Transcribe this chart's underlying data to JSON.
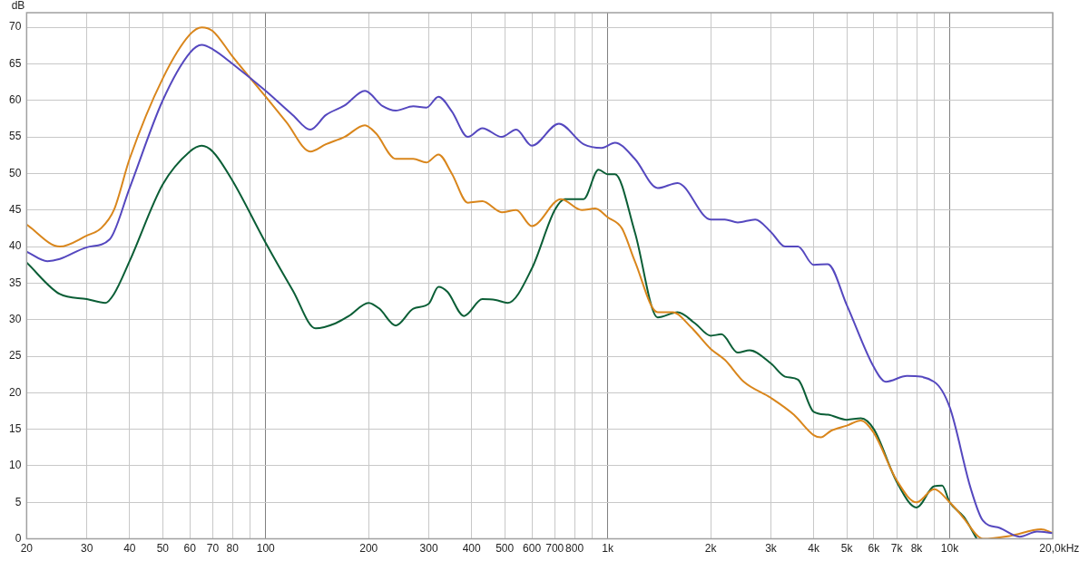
{
  "chart_data": {
    "type": "line",
    "ylabel": "dB",
    "xlabel": "Hz",
    "log": "x",
    "grid": true,
    "legend": false,
    "xlim": [
      20,
      20000
    ],
    "ylim": [
      0,
      72
    ],
    "xticks": [
      20,
      30,
      40,
      50,
      60,
      70,
      80,
      {
        "value": 90,
        "label": null
      },
      100,
      200,
      300,
      400,
      500,
      600,
      700,
      800,
      {
        "value": 900,
        "label": null
      },
      {
        "value": 1000,
        "label": "1k"
      },
      {
        "value": 2000,
        "label": "2k"
      },
      {
        "value": 3000,
        "label": "3k"
      },
      {
        "value": 4000,
        "label": "4k"
      },
      {
        "value": 5000,
        "label": "5k"
      },
      {
        "value": 6000,
        "label": "6k"
      },
      {
        "value": 7000,
        "label": "7k"
      },
      {
        "value": 8000,
        "label": "8k"
      },
      {
        "value": 9000,
        "label": null
      },
      {
        "value": 10000,
        "label": "10k"
      },
      {
        "value": 20000,
        "label": "20,0k"
      }
    ],
    "yticks": [
      0,
      5,
      10,
      15,
      20,
      25,
      30,
      35,
      40,
      45,
      50,
      55,
      60,
      65,
      70
    ],
    "series": [
      {
        "color": "#5548bf",
        "x": [
          20,
          23,
          25,
          30,
          35,
          40,
          50,
          60,
          65,
          70,
          80,
          100,
          120,
          135,
          150,
          170,
          195,
          220,
          240,
          270,
          295,
          320,
          350,
          390,
          430,
          490,
          540,
          600,
          720,
          850,
          960,
          1050,
          1200,
          1400,
          1600,
          2000,
          2200,
          2400,
          2700,
          3000,
          3300,
          3600,
          4000,
          4400,
          5000,
          6000,
          6500,
          7500,
          9000,
          10000,
          11500,
          12500,
          14000,
          16000,
          18000,
          20000
        ],
        "values": [
          39.3,
          38,
          38.3,
          39.9,
          41,
          48,
          60,
          66.5,
          67.6,
          67,
          65,
          61.3,
          58,
          56,
          58,
          59.3,
          61.3,
          59.2,
          58.6,
          59.2,
          59,
          60.5,
          58.5,
          55,
          56.2,
          55,
          56,
          53.8,
          56.8,
          54,
          53.5,
          54.2,
          52,
          48,
          48.7,
          43.7,
          43.7,
          43.3,
          43.7,
          42,
          40,
          40,
          37.5,
          37.6,
          32,
          23.5,
          21.5,
          22.3,
          21.5,
          18,
          7,
          2.5,
          1.5,
          0.3,
          1,
          0.8
        ]
      },
      {
        "color": "#d9861c",
        "x": [
          20,
          25,
          30,
          33,
          36,
          40,
          50,
          60,
          65,
          70,
          80,
          100,
          115,
          135,
          150,
          170,
          195,
          210,
          240,
          270,
          295,
          320,
          350,
          390,
          430,
          490,
          540,
          600,
          730,
          840,
          920,
          1000,
          1100,
          1200,
          1400,
          1550,
          1750,
          2000,
          2200,
          2500,
          3000,
          3500,
          4000,
          4200,
          4500,
          5000,
          5500,
          6000,
          7000,
          8000,
          9000,
          10000,
          11000,
          12000,
          12500,
          15000,
          18500,
          20000
        ],
        "values": [
          43,
          40,
          41.5,
          42.5,
          45,
          52,
          63,
          69,
          70,
          69.5,
          66,
          60.5,
          57,
          53,
          54,
          55,
          56.6,
          55.5,
          52,
          52,
          51.5,
          52.6,
          50,
          46,
          46.2,
          44.7,
          45,
          42.8,
          46.5,
          45,
          45.2,
          44,
          42.5,
          38,
          31,
          31,
          29,
          26,
          24.5,
          21.5,
          19.3,
          17,
          14.2,
          13.9,
          14.8,
          15.5,
          16.2,
          14.5,
          8,
          5,
          6.8,
          5,
          2.8,
          0.5,
          0,
          0.4,
          1.3,
          0.8
        ]
      },
      {
        "color": "#0b5e36",
        "x": [
          20,
          25,
          30,
          34,
          36,
          40,
          50,
          60,
          65,
          70,
          80,
          100,
          120,
          140,
          160,
          175,
          200,
          215,
          240,
          270,
          300,
          320,
          340,
          380,
          430,
          470,
          510,
          600,
          700,
          750,
          850,
          940,
          1000,
          1050,
          1200,
          1400,
          1600,
          1800,
          2000,
          2150,
          2400,
          2600,
          3000,
          3300,
          3600,
          4000,
          4400,
          5000,
          5500,
          6000,
          7000,
          8000,
          9000,
          9500,
          10000,
          11000,
          12000
        ],
        "values": [
          37.8,
          33.5,
          32.8,
          32.3,
          33.5,
          38,
          48.5,
          53,
          53.8,
          53,
          49,
          40.5,
          34,
          28.8,
          29.5,
          30.5,
          32.3,
          31.5,
          29.2,
          31.5,
          32.2,
          34.5,
          33.8,
          30.5,
          32.8,
          32.7,
          32.3,
          37,
          45,
          46.5,
          46.5,
          50.5,
          49.9,
          49.9,
          42,
          30.3,
          31,
          29.5,
          27.8,
          28,
          25.5,
          25.8,
          24,
          22.2,
          21.8,
          17.4,
          17,
          16.3,
          16.5,
          15,
          7.8,
          4.3,
          7.2,
          7.3,
          5,
          3,
          0
        ]
      }
    ]
  }
}
